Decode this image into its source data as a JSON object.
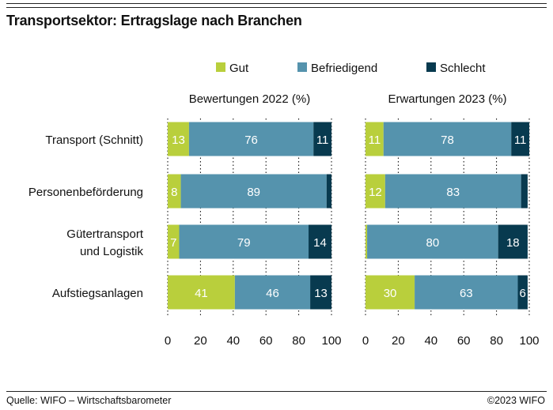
{
  "title": "Transportsektor: Ertragslage nach Branchen",
  "footer": {
    "source": "Quelle: WIFO – Wirtschaftsbarometer",
    "copyright": "©2023 WIFO"
  },
  "colors": {
    "Gut": "#b9cf3c",
    "Befriedigend": "#5593ad",
    "Schlecht": "#083a4f"
  },
  "chart_data": {
    "type": "bar",
    "orientation": "horizontal",
    "stacked": true,
    "legend_position": "top",
    "categories": [
      [
        "Transport (Schnitt)"
      ],
      [
        "Personenbeförderung"
      ],
      [
        "Gütertransport",
        "und Logistik"
      ],
      [
        "Aufstiegsanlagen"
      ]
    ],
    "series_names": [
      "Gut",
      "Befriedigend",
      "Schlecht"
    ],
    "xlim": [
      0,
      100
    ],
    "xticks": [
      0,
      20,
      40,
      60,
      80,
      100
    ],
    "panels": [
      {
        "title": "Bewertungen 2022 (%)",
        "series": [
          {
            "name": "Gut",
            "values": [
              13,
              8,
              7,
              41
            ]
          },
          {
            "name": "Befriedigend",
            "values": [
              76,
              89,
              79,
              46
            ]
          },
          {
            "name": "Schlecht",
            "values": [
              11,
              3,
              14,
              13
            ]
          }
        ],
        "labels": [
          [
            "13",
            "76",
            "11"
          ],
          [
            "8",
            "89",
            ""
          ],
          [
            "7",
            "79",
            "14"
          ],
          [
            "41",
            "46",
            "13"
          ]
        ]
      },
      {
        "title": "Erwartungen 2023 (%)",
        "series": [
          {
            "name": "Gut",
            "values": [
              11,
              12,
              1,
              30
            ]
          },
          {
            "name": "Befriedigend",
            "values": [
              78,
              83,
              80,
              63
            ]
          },
          {
            "name": "Schlecht",
            "values": [
              11,
              4,
              18,
              6
            ]
          }
        ],
        "labels": [
          [
            "11",
            "78",
            "11"
          ],
          [
            "12",
            "83",
            ""
          ],
          [
            "",
            "80",
            "18"
          ],
          [
            "30",
            "63",
            "6"
          ]
        ]
      }
    ]
  }
}
